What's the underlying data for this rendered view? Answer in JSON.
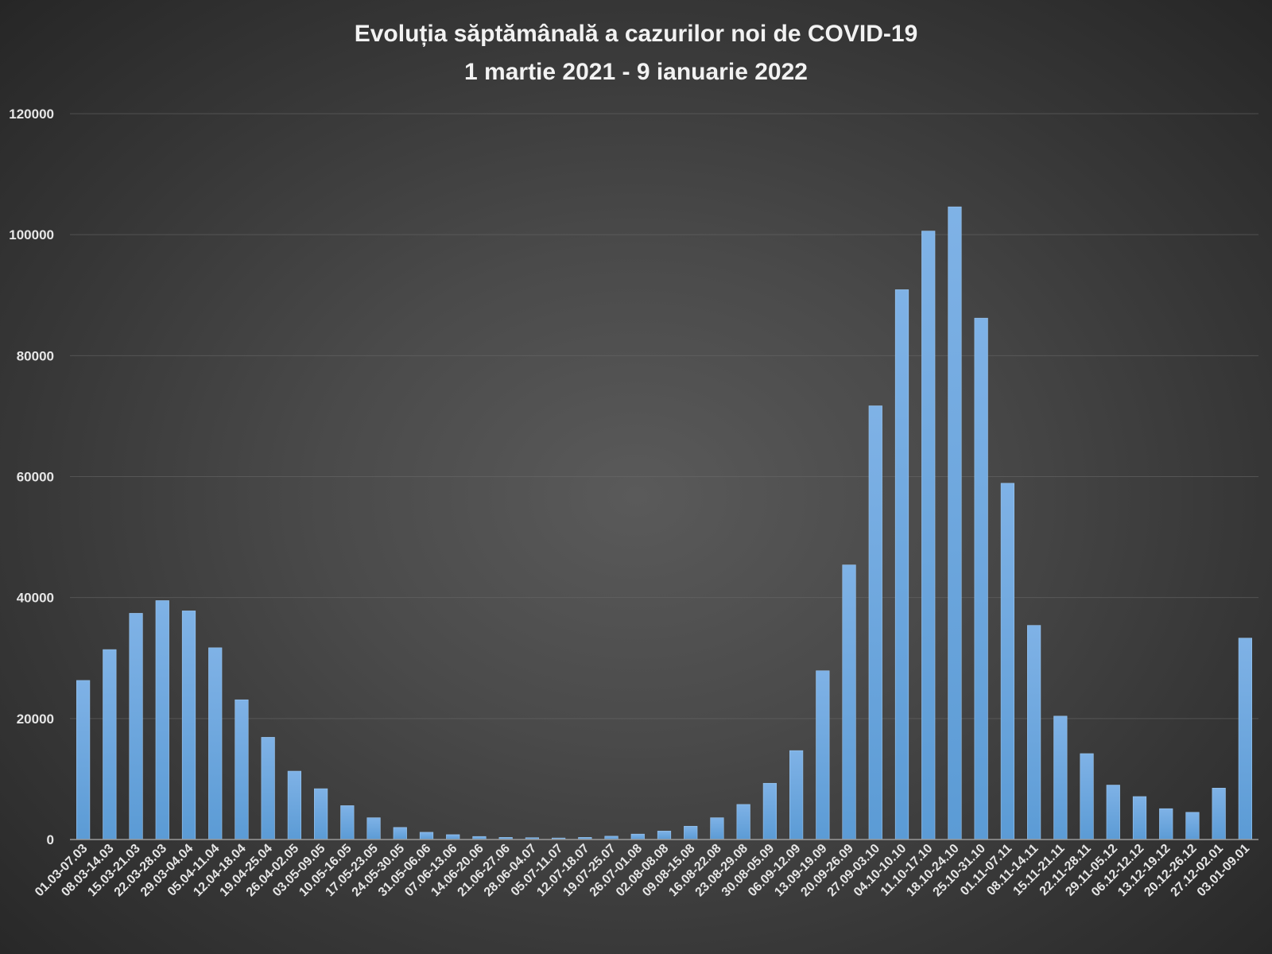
{
  "chart_data": {
    "type": "bar",
    "title": "Evoluția săptămânală a cazurilor noi de COVID-19",
    "subtitle": "1 martie 2021 - 9 ianuarie 2022",
    "xlabel": "",
    "ylabel": "",
    "ylim": [
      0,
      120000
    ],
    "yticks": [
      0,
      20000,
      40000,
      60000,
      80000,
      100000,
      120000
    ],
    "ytick_labels": [
      "0",
      "20000",
      "40000",
      "60000",
      "80000",
      "100000",
      "120000"
    ],
    "grid": true,
    "legend": "none",
    "bar_color": "#5b9bd5",
    "categories": [
      "01.03-07.03",
      "08.03-14.03",
      "15.03-21.03",
      "22.03-28.03",
      "29.03-04.04",
      "05.04-11.04",
      "12.04-18.04",
      "19.04-25.04",
      "26.04-02.05",
      "03.05-09.05",
      "10.05-16.05",
      "17.05-23.05",
      "24.05-30.05",
      "31.05-06.06",
      "07.06-13.06",
      "14.06-20.06",
      "21.06-27.06",
      "28.06-04.07",
      "05.07-11.07",
      "12.07-18.07",
      "19.07-25.07",
      "26.07-01.08",
      "02.08-08.08",
      "09.08-15.08",
      "16.08-22.08",
      "23.08-29.08",
      "30.08-05.09",
      "06.09-12.09",
      "13.09-19.09",
      "20.09-26.09",
      "27.09-03.10",
      "04.10-10.10",
      "11.10-17.10",
      "18.10-24.10",
      "25.10-31.10",
      "01.11-07.11",
      "08.11-14.11",
      "15.11-21.11",
      "22.11-28.11",
      "29.11-05.12",
      "06.12-12.12",
      "13.12-19.12",
      "20.12-26.12",
      "27.12-02.01",
      "03.01-09.01"
    ],
    "values": [
      26300,
      31400,
      37400,
      39500,
      37800,
      31700,
      23100,
      16900,
      11300,
      8400,
      5600,
      3600,
      2000,
      1200,
      800,
      500,
      350,
      300,
      250,
      350,
      550,
      900,
      1400,
      2200,
      3600,
      5800,
      9300,
      14700,
      27900,
      45400,
      71700,
      90900,
      100600,
      104600,
      86200,
      58900,
      35400,
      20400,
      14200,
      9000,
      7100,
      5100,
      4500,
      8500,
      33300
    ]
  }
}
